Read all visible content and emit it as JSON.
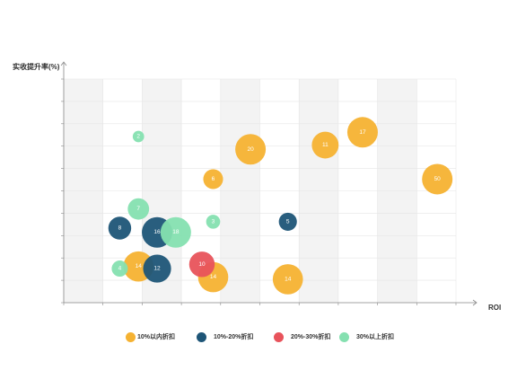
{
  "chart_data": {
    "type": "scatter",
    "subtype": "bubble",
    "title": "",
    "xlabel": "ROI",
    "ylabel": "实收提升率(%)",
    "xlim": [
      0,
      10.5
    ],
    "ylim": [
      0,
      10.5
    ],
    "grid": true,
    "legend_position": "bottom",
    "series": [
      {
        "name": "10%以内折扣",
        "color": "#F5B232",
        "points": [
          {
            "x": 2.0,
            "y": 1.7,
            "size": 14,
            "label": "14"
          },
          {
            "x": 4.0,
            "y": 1.2,
            "size": 14,
            "label": "14"
          },
          {
            "x": 6.0,
            "y": 1.1,
            "size": 14,
            "label": "14"
          },
          {
            "x": 4.0,
            "y": 5.8,
            "size": 6,
            "label": "6"
          },
          {
            "x": 5.0,
            "y": 7.2,
            "size": 20,
            "label": "20"
          },
          {
            "x": 7.0,
            "y": 7.4,
            "size": 11,
            "label": "11"
          },
          {
            "x": 8.0,
            "y": 8.0,
            "size": 17,
            "label": "17"
          },
          {
            "x": 10.0,
            "y": 5.8,
            "size": 50,
            "label": "50"
          }
        ]
      },
      {
        "name": "10%-20%折扣",
        "color": "#1E5577",
        "points": [
          {
            "x": 1.5,
            "y": 3.5,
            "size": 8,
            "label": "8"
          },
          {
            "x": 2.5,
            "y": 3.3,
            "size": 16,
            "label": "16"
          },
          {
            "x": 2.5,
            "y": 1.6,
            "size": 12,
            "label": "12"
          },
          {
            "x": 6.0,
            "y": 3.8,
            "size": 5,
            "label": "5"
          }
        ]
      },
      {
        "name": "20%-30%折扣",
        "color": "#E8535B",
        "points": [
          {
            "x": 3.7,
            "y": 1.8,
            "size": 10,
            "label": "10"
          }
        ]
      },
      {
        "name": "30%以上折扣",
        "color": "#85E0B0",
        "points": [
          {
            "x": 2.0,
            "y": 7.8,
            "size": 2,
            "label": "2"
          },
          {
            "x": 2.0,
            "y": 4.4,
            "size": 7,
            "label": "7"
          },
          {
            "x": 3.0,
            "y": 3.3,
            "size": 18,
            "label": "18"
          },
          {
            "x": 4.0,
            "y": 3.8,
            "size": 3,
            "label": "3"
          },
          {
            "x": 1.5,
            "y": 1.6,
            "size": 4,
            "label": "4"
          }
        ]
      }
    ]
  }
}
